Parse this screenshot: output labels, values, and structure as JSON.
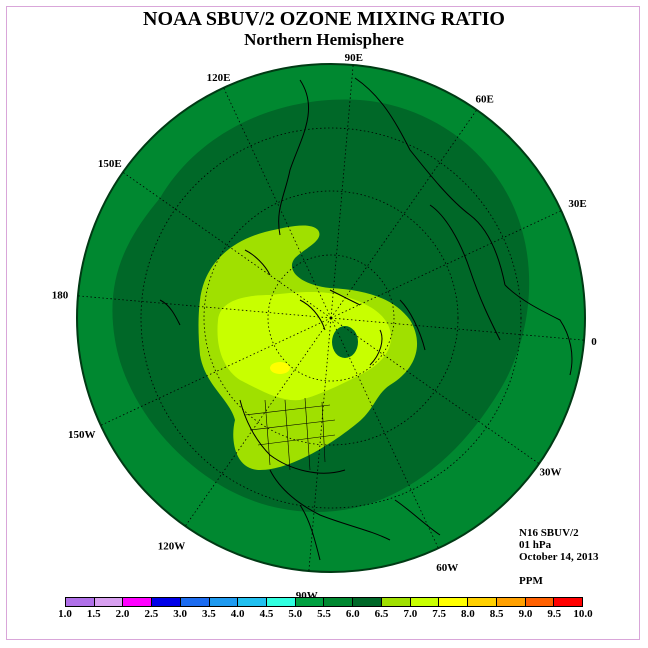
{
  "title": "NOAA SBUV/2 OZONE MIXING RATIO",
  "subtitle": "Northern Hemisphere",
  "longitude_labels": [
    "90E",
    "60E",
    "30E",
    "0",
    "30W",
    "60W",
    "90W",
    "120W",
    "150W",
    "180",
    "150E",
    "120E"
  ],
  "info": {
    "instrument": "N16 SBUV/2",
    "level": "01 hPa",
    "date": "October 14, 2013",
    "units": "PPM"
  },
  "colorbar": {
    "labels": [
      "1.0",
      "1.5",
      "2.0",
      "2.5",
      "3.0",
      "3.5",
      "4.0",
      "4.5",
      "5.0",
      "5.5",
      "6.0",
      "6.5",
      "7.0",
      "7.5",
      "8.0",
      "8.5",
      "9.0",
      "9.5",
      "10.0"
    ],
    "colors": [
      "#b070e8",
      "#d8a0f0",
      "#ff00ff",
      "#0000e8",
      "#1c6cf0",
      "#1e9af0",
      "#20c0f0",
      "#30ffe0",
      "#00a040",
      "#008830",
      "#006828",
      "#a0e000",
      "#c8ff00",
      "#ffff00",
      "#ffd000",
      "#ffa000",
      "#ff6000",
      "#ff0000",
      "#8b5a3c"
    ]
  },
  "map_colors": {
    "band_5_0": "#008830",
    "band_5_5": "#006828",
    "band_6_0": "#a0e000",
    "band_6_5": "#c8ff00",
    "band_7_0": "#ffff00",
    "outline": "#003a14",
    "coast": "#000000"
  }
}
